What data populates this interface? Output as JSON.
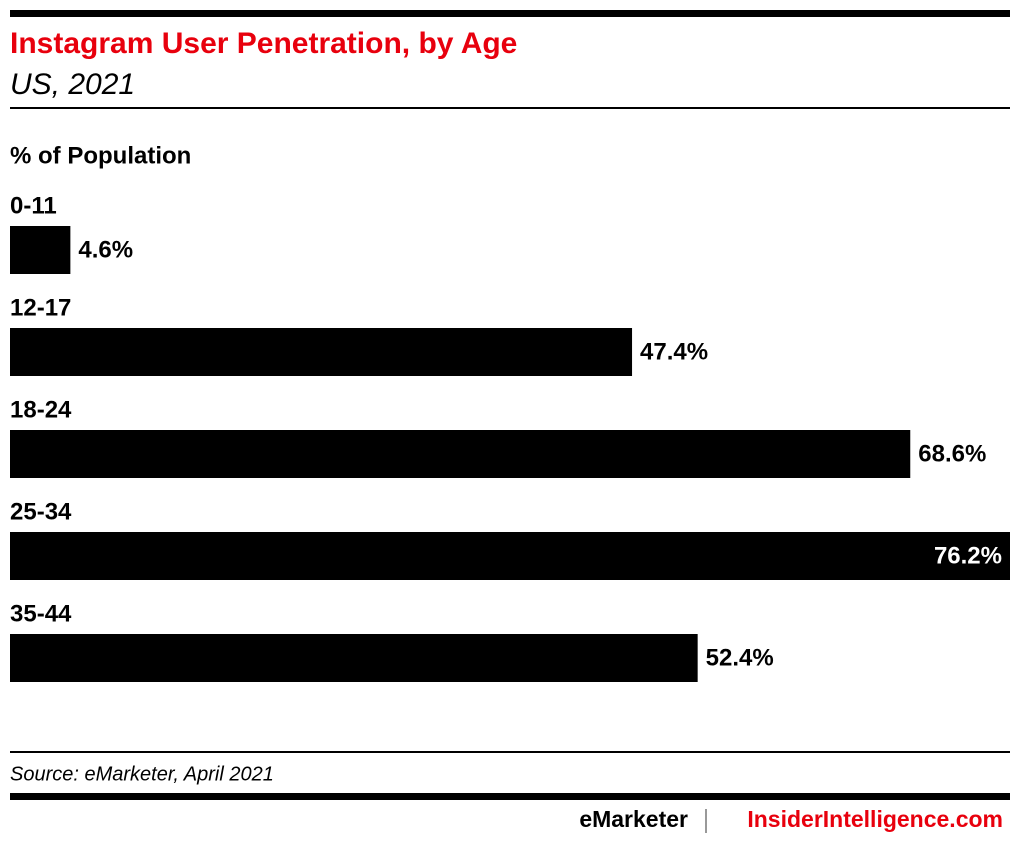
{
  "chart_data": {
    "type": "hbar",
    "title": "Instagram User Penetration, by Age",
    "subtitle": "US, 2021",
    "value_axis_label": "% of Population",
    "categories": [
      "0-11",
      "12-17",
      "18-24",
      "25-34",
      "35-44"
    ],
    "values": [
      4.6,
      47.4,
      68.6,
      76.2,
      52.4
    ],
    "value_labels": [
      "4.6%",
      "47.4%",
      "68.6%",
      "76.2%",
      "52.4%"
    ],
    "color": "#000000",
    "source": "Source: eMarketer, April 2021",
    "footer_left": "eMarketer",
    "footer_right": "InsiderIntelligence.com"
  }
}
